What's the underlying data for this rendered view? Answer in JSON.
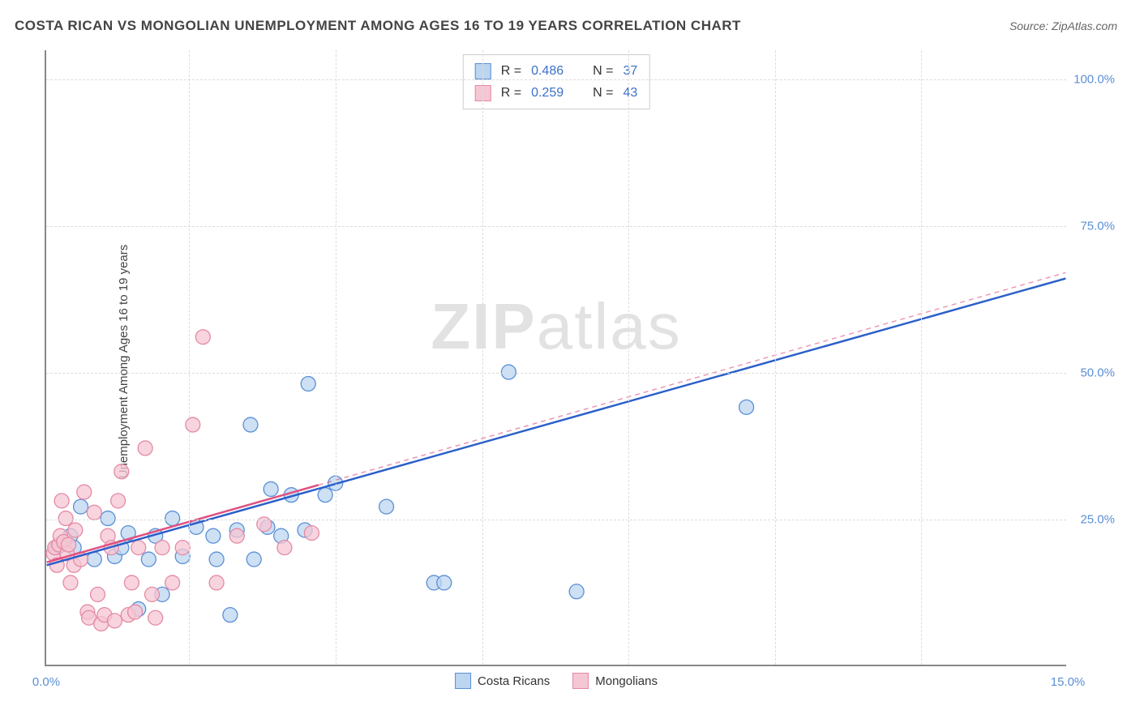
{
  "header": {
    "title": "COSTA RICAN VS MONGOLIAN UNEMPLOYMENT AMONG AGES 16 TO 19 YEARS CORRELATION CHART",
    "source_label": "Source: ZipAtlas.com"
  },
  "axes": {
    "y_label": "Unemployment Among Ages 16 to 19 years",
    "x_min": 0.0,
    "x_max": 15.0,
    "y_min": 0.0,
    "y_max": 105.0,
    "x_ticks": [
      {
        "value": 0.0,
        "label": "0.0%"
      },
      {
        "value": 15.0,
        "label": "15.0%"
      }
    ],
    "y_ticks": [
      {
        "value": 25.0,
        "label": "25.0%"
      },
      {
        "value": 50.0,
        "label": "50.0%"
      },
      {
        "value": 75.0,
        "label": "75.0%"
      },
      {
        "value": 100.0,
        "label": "100.0%"
      }
    ],
    "y_tick_label_color": "#5b8fd6",
    "x_tick_label_color": "#5b8fd6",
    "grid_color": "#dddddd",
    "border_color": "#888888"
  },
  "watermark": {
    "text_bold": "ZIP",
    "text_light": "atlas",
    "color": "#cccccc"
  },
  "correlation_box": {
    "rows": [
      {
        "swatch_fill": "#bcd5f0",
        "swatch_border": "#5b8fd6",
        "r_label": "R =",
        "r_value": "0.486",
        "n_label": "N =",
        "n_value": "37"
      },
      {
        "swatch_fill": "#f5c6d3",
        "swatch_border": "#e48aa4",
        "r_label": "R =",
        "r_value": "0.259",
        "n_label": "N =",
        "n_value": "43"
      }
    ]
  },
  "legend": {
    "items": [
      {
        "swatch_fill": "#bcd5f0",
        "swatch_border": "#5b8fd6",
        "label": "Costa Ricans"
      },
      {
        "swatch_fill": "#f5c6d3",
        "swatch_border": "#e48aa4",
        "label": "Mongolians"
      }
    ]
  },
  "chart": {
    "type": "scatter",
    "marker_radius": 9,
    "marker_opacity": 0.75,
    "marker_stroke_width": 1.3,
    "trendline_width": 2.5,
    "series": [
      {
        "name": "Costa Ricans",
        "color_fill": "#bcd5f0",
        "color_stroke": "#5b8fd6",
        "trendline_color": "#2b5fc9",
        "trendline_dash": "",
        "trendline": {
          "x1": 0.0,
          "y1": 17.0,
          "x2": 15.0,
          "y2": 66.0
        },
        "points": [
          [
            0.15,
            20.0
          ],
          [
            0.2,
            20.5
          ],
          [
            0.35,
            22.0
          ],
          [
            0.4,
            20.0
          ],
          [
            0.5,
            27.0
          ],
          [
            0.7,
            18.0
          ],
          [
            0.9,
            25.0
          ],
          [
            1.0,
            18.5
          ],
          [
            1.1,
            20.0
          ],
          [
            1.2,
            22.5
          ],
          [
            1.35,
            9.5
          ],
          [
            1.5,
            18.0
          ],
          [
            1.6,
            22.0
          ],
          [
            1.7,
            12.0
          ],
          [
            1.85,
            25.0
          ],
          [
            2.0,
            18.5
          ],
          [
            2.2,
            23.5
          ],
          [
            2.45,
            22.0
          ],
          [
            2.5,
            18.0
          ],
          [
            2.7,
            8.5
          ],
          [
            2.8,
            23.0
          ],
          [
            3.0,
            41.0
          ],
          [
            3.05,
            18.0
          ],
          [
            3.25,
            23.5
          ],
          [
            3.3,
            30.0
          ],
          [
            3.45,
            22.0
          ],
          [
            3.6,
            29.0
          ],
          [
            3.8,
            23.0
          ],
          [
            3.85,
            48.0
          ],
          [
            4.1,
            29.0
          ],
          [
            4.25,
            31.0
          ],
          [
            5.0,
            27.0
          ],
          [
            5.7,
            14.0
          ],
          [
            5.85,
            14.0
          ],
          [
            6.8,
            50.0
          ],
          [
            7.8,
            12.5
          ],
          [
            10.3,
            44.0
          ]
        ]
      },
      {
        "name": "Mongolians",
        "color_fill": "#f5c6d3",
        "color_stroke": "#e48aa4",
        "trendline_color": "#e05080",
        "trendline_dash": "6 5",
        "trendline": {
          "x1": 0.0,
          "y1": 17.5,
          "x2": 15.0,
          "y2": 67.0
        },
        "trendline_visible_xmax": 4.0,
        "points": [
          [
            0.1,
            19.0
          ],
          [
            0.12,
            20.0
          ],
          [
            0.15,
            17.0
          ],
          [
            0.18,
            20.5
          ],
          [
            0.2,
            22.0
          ],
          [
            0.22,
            28.0
          ],
          [
            0.25,
            21.0
          ],
          [
            0.28,
            25.0
          ],
          [
            0.3,
            19.0
          ],
          [
            0.32,
            20.5
          ],
          [
            0.35,
            14.0
          ],
          [
            0.4,
            17.0
          ],
          [
            0.42,
            23.0
          ],
          [
            0.5,
            18.0
          ],
          [
            0.55,
            29.5
          ],
          [
            0.6,
            9.0
          ],
          [
            0.62,
            8.0
          ],
          [
            0.7,
            26.0
          ],
          [
            0.75,
            12.0
          ],
          [
            0.8,
            7.0
          ],
          [
            0.85,
            8.5
          ],
          [
            0.9,
            22.0
          ],
          [
            0.95,
            20.0
          ],
          [
            1.0,
            7.5
          ],
          [
            1.05,
            28.0
          ],
          [
            1.1,
            33.0
          ],
          [
            1.2,
            8.5
          ],
          [
            1.25,
            14.0
          ],
          [
            1.3,
            9.0
          ],
          [
            1.35,
            20.0
          ],
          [
            1.45,
            37.0
          ],
          [
            1.55,
            12.0
          ],
          [
            1.6,
            8.0
          ],
          [
            1.7,
            20.0
          ],
          [
            1.85,
            14.0
          ],
          [
            2.0,
            20.0
          ],
          [
            2.15,
            41.0
          ],
          [
            2.3,
            56.0
          ],
          [
            2.5,
            14.0
          ],
          [
            2.8,
            22.0
          ],
          [
            3.2,
            24.0
          ],
          [
            3.5,
            20.0
          ],
          [
            3.9,
            22.5
          ]
        ]
      }
    ]
  }
}
